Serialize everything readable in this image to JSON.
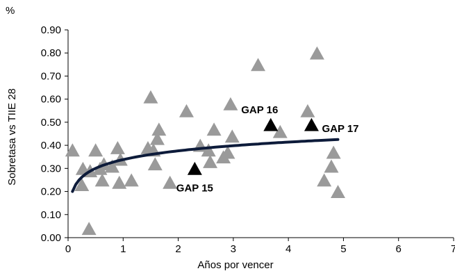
{
  "chart_data": {
    "type": "scatter",
    "title": "",
    "unit_label": "%",
    "xlabel": "Años por vencer",
    "ylabel": "Sobretasa vs TIIE 28",
    "xlim": [
      0,
      7
    ],
    "ylim": [
      0,
      0.9
    ],
    "x_ticks": [
      0,
      1,
      2,
      3,
      4,
      5,
      6,
      7
    ],
    "y_ticks": [
      "0.00",
      "0.10",
      "0.20",
      "0.30",
      "0.40",
      "0.50",
      "0.60",
      "0.70",
      "0.80",
      "0.90"
    ],
    "grid": false,
    "legend": "none",
    "colors": {
      "points": "#9a9a9a",
      "highlight": "#000000",
      "trend": "#0d1b3a"
    },
    "series": [
      {
        "marker": "triangle",
        "points": [
          {
            "x": 0.08,
            "y": 0.38
          },
          {
            "x": 0.25,
            "y": 0.23
          },
          {
            "x": 0.27,
            "y": 0.3
          },
          {
            "x": 0.38,
            "y": 0.04
          },
          {
            "x": 0.4,
            "y": 0.29
          },
          {
            "x": 0.5,
            "y": 0.38
          },
          {
            "x": 0.58,
            "y": 0.3
          },
          {
            "x": 0.62,
            "y": 0.25
          },
          {
            "x": 0.65,
            "y": 0.32
          },
          {
            "x": 0.8,
            "y": 0.31
          },
          {
            "x": 0.9,
            "y": 0.39
          },
          {
            "x": 0.93,
            "y": 0.24
          },
          {
            "x": 0.95,
            "y": 0.34
          },
          {
            "x": 1.15,
            "y": 0.25
          },
          {
            "x": 1.45,
            "y": 0.39
          },
          {
            "x": 1.5,
            "y": 0.61
          },
          {
            "x": 1.55,
            "y": 0.38
          },
          {
            "x": 1.58,
            "y": 0.32
          },
          {
            "x": 1.62,
            "y": 0.43
          },
          {
            "x": 1.65,
            "y": 0.47
          },
          {
            "x": 1.85,
            "y": 0.24
          },
          {
            "x": 2.15,
            "y": 0.55
          },
          {
            "x": 2.4,
            "y": 0.4
          },
          {
            "x": 2.55,
            "y": 0.38
          },
          {
            "x": 2.58,
            "y": 0.33
          },
          {
            "x": 2.65,
            "y": 0.47
          },
          {
            "x": 2.82,
            "y": 0.35
          },
          {
            "x": 2.9,
            "y": 0.37
          },
          {
            "x": 2.95,
            "y": 0.58
          },
          {
            "x": 2.98,
            "y": 0.44
          },
          {
            "x": 3.45,
            "y": 0.75
          },
          {
            "x": 3.85,
            "y": 0.46
          },
          {
            "x": 4.35,
            "y": 0.55
          },
          {
            "x": 4.52,
            "y": 0.8
          },
          {
            "x": 4.65,
            "y": 0.25
          },
          {
            "x": 4.78,
            "y": 0.31
          },
          {
            "x": 4.82,
            "y": 0.37
          },
          {
            "x": 4.9,
            "y": 0.2
          }
        ]
      },
      {
        "marker": "triangle-highlight",
        "points": [
          {
            "x": 2.3,
            "y": 0.3,
            "label": "GAP 15"
          },
          {
            "x": 3.68,
            "y": 0.49,
            "label": "GAP 16"
          },
          {
            "x": 4.42,
            "y": 0.49,
            "label": "GAP 17"
          }
        ]
      }
    ],
    "trendline": {
      "type": "logarithmic",
      "x_start": 0.08,
      "x_end": 4.9,
      "y_start": 0.2,
      "y_end": 0.425
    },
    "annotations": [
      {
        "text": "GAP 15",
        "x": 2.3,
        "y": 0.3,
        "pos": "below"
      },
      {
        "text": "GAP 16",
        "x": 3.68,
        "y": 0.49,
        "pos": "above-left"
      },
      {
        "text": "GAP 17",
        "x": 4.42,
        "y": 0.49,
        "pos": "right"
      }
    ]
  }
}
